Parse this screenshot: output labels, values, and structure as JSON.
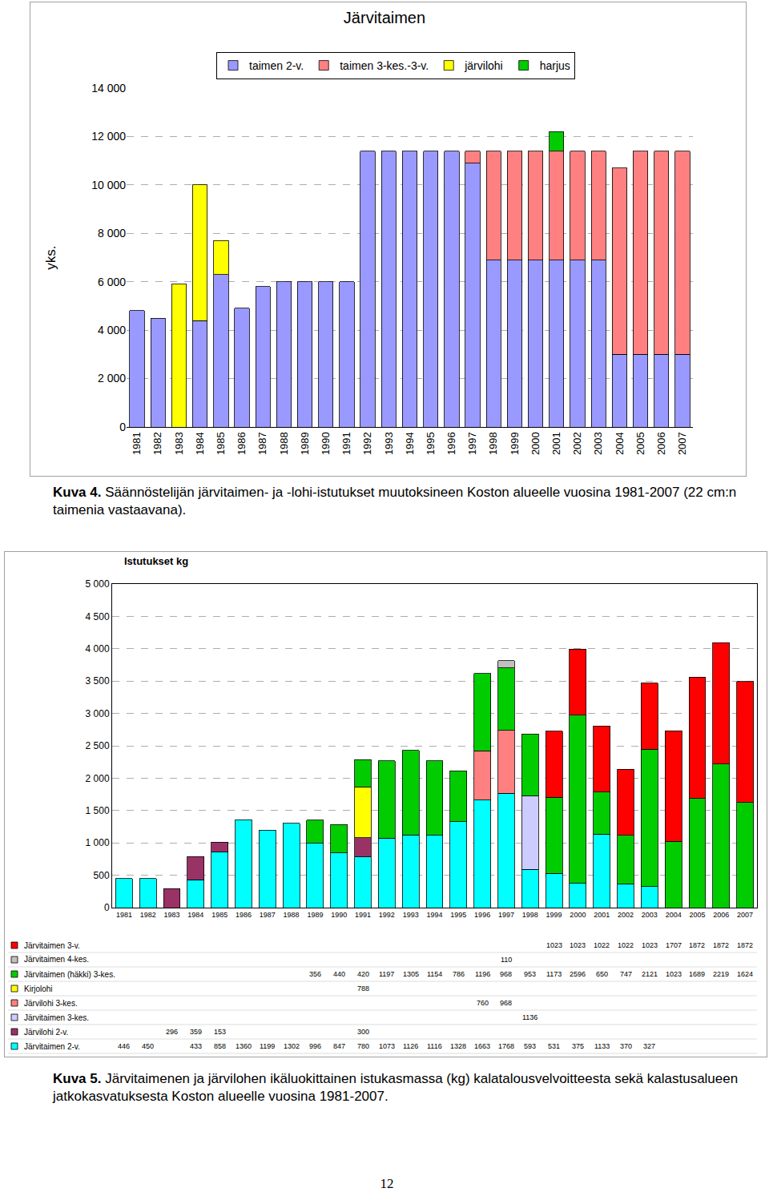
{
  "chart_data": [
    {
      "type": "bar",
      "title": "Järvitaimen",
      "y_label": "yks.",
      "stacked": true,
      "grid": true,
      "legend": "top",
      "categories": [
        "1981",
        "1982",
        "1983",
        "1984",
        "1985",
        "1986",
        "1987",
        "1988",
        "1989",
        "1990",
        "1991",
        "1992",
        "1993",
        "1994",
        "1995",
        "1996",
        "1997",
        "1998",
        "1999",
        "2000",
        "2001",
        "2002",
        "2003",
        "2004",
        "2005",
        "2006",
        "2007"
      ],
      "ylim": [
        0,
        14000
      ],
      "yticks": [
        0,
        {
          "value": 2000,
          "label": "2 000"
        },
        {
          "value": 4000,
          "label": "4 000"
        },
        {
          "value": 6000,
          "label": "6 000"
        },
        {
          "value": 8000,
          "label": "8 000"
        },
        {
          "value": 10000,
          "label": "10 000"
        },
        {
          "value": 12000,
          "label": "12 000"
        },
        {
          "value": 14000,
          "label": "14 000"
        }
      ],
      "series": [
        {
          "name": "taimen 2-v.",
          "color": "#9999FF",
          "values": [
            4800,
            4500,
            null,
            4400,
            6300,
            4900,
            5800,
            6000,
            6000,
            6000,
            6000,
            11400,
            11400,
            11400,
            11400,
            11400,
            10900,
            6900,
            6900,
            6900,
            6900,
            6900,
            6900,
            3000,
            3000,
            3000,
            3000
          ]
        },
        {
          "name": "taimen 3-kes.-3-v.",
          "color": "#FF8080",
          "values": [
            null,
            null,
            null,
            null,
            null,
            null,
            null,
            null,
            null,
            null,
            null,
            null,
            null,
            null,
            null,
            null,
            500,
            4500,
            4500,
            4500,
            4500,
            4500,
            4500,
            7700,
            8400,
            8400,
            8400
          ]
        },
        {
          "name": "järvilohi",
          "color": "#FFFF00",
          "values": [
            null,
            null,
            5900,
            5600,
            1400,
            null,
            null,
            null,
            null,
            null,
            null,
            null,
            null,
            null,
            null,
            null,
            null,
            null,
            null,
            null,
            null,
            null,
            null,
            null,
            null,
            null,
            null
          ]
        },
        {
          "name": "harjus",
          "color": "#00CC00",
          "values": [
            null,
            null,
            null,
            null,
            null,
            null,
            null,
            null,
            null,
            null,
            null,
            null,
            null,
            null,
            null,
            null,
            null,
            null,
            null,
            null,
            800,
            null,
            null,
            null,
            null,
            null,
            null
          ]
        }
      ]
    },
    {
      "type": "bar",
      "title": "Istutukset kg",
      "stacked": true,
      "grid": true,
      "data_labels": true,
      "categories": [
        "1981",
        "1982",
        "1983",
        "1984",
        "1985",
        "1986",
        "1987",
        "1988",
        "1989",
        "1990",
        "1991",
        "1992",
        "1993",
        "1994",
        "1995",
        "1996",
        "1997",
        "1998",
        "1999",
        "2000",
        "2001",
        "2002",
        "2003",
        "2004",
        "2005",
        "2006",
        "2007"
      ],
      "ylim": [
        0,
        5000
      ],
      "yticks": [
        0,
        500,
        {
          "value": 1000,
          "label": "1 000"
        },
        {
          "value": 1500,
          "label": "1 500"
        },
        {
          "value": 2000,
          "label": "2 000"
        },
        {
          "value": 2500,
          "label": "2 500"
        },
        {
          "value": 3000,
          "label": "3 000"
        },
        {
          "value": 3500,
          "label": "3 500"
        },
        {
          "value": 4000,
          "label": "4 000"
        },
        {
          "value": 4500,
          "label": "4 500"
        },
        {
          "value": 5000,
          "label": "5 000"
        }
      ],
      "series": [
        {
          "name": "Järvitaimen 2-v.",
          "color": "#00FFFF",
          "values": [
            446,
            450,
            null,
            433,
            858,
            1360,
            1199,
            1302,
            996,
            847,
            780,
            1073,
            1126,
            1116,
            1328,
            1663,
            1768,
            593,
            531,
            375,
            1133,
            370,
            327,
            null,
            null,
            null,
            null
          ]
        },
        {
          "name": "Järvilohi 2-v.",
          "color": "#993366",
          "values": [
            null,
            null,
            296,
            359,
            153,
            null,
            null,
            null,
            null,
            null,
            300,
            null,
            null,
            null,
            null,
            null,
            null,
            null,
            null,
            null,
            null,
            null,
            null,
            null,
            null,
            null,
            null
          ]
        },
        {
          "name": "Järvitaimen 3-kes.",
          "color": "#CCCCFF",
          "values": [
            null,
            null,
            null,
            null,
            null,
            null,
            null,
            null,
            null,
            null,
            null,
            null,
            null,
            null,
            null,
            null,
            null,
            1136,
            null,
            null,
            null,
            null,
            null,
            null,
            null,
            null,
            null
          ]
        },
        {
          "name": "Järvilohi 3-kes.",
          "color": "#FF8080",
          "values": [
            null,
            null,
            null,
            null,
            null,
            null,
            null,
            null,
            null,
            null,
            null,
            null,
            null,
            null,
            null,
            760,
            968,
            null,
            null,
            null,
            null,
            null,
            null,
            null,
            null,
            null,
            null
          ]
        },
        {
          "name": "Kirjolohi",
          "color": "#FFFF00",
          "values": [
            null,
            null,
            null,
            null,
            null,
            null,
            null,
            null,
            null,
            null,
            788,
            null,
            null,
            null,
            null,
            null,
            null,
            null,
            null,
            null,
            null,
            null,
            null,
            null,
            null,
            null,
            null
          ]
        },
        {
          "name": "Järvitaimen (häkki) 3-kes.",
          "color": "#00CC00",
          "values": [
            null,
            null,
            null,
            null,
            null,
            null,
            null,
            null,
            356,
            440,
            420,
            1197,
            1305,
            1154,
            786,
            1196,
            968,
            953,
            1173,
            2596,
            650,
            747,
            2121,
            1023,
            1689,
            2219,
            1624
          ]
        },
        {
          "name": "Järvitaimen 4-kes.",
          "color": "#C0C0C0",
          "values": [
            null,
            null,
            null,
            null,
            null,
            null,
            null,
            null,
            null,
            null,
            null,
            null,
            null,
            null,
            null,
            null,
            110,
            null,
            null,
            null,
            null,
            null,
            null,
            null,
            null,
            null,
            null
          ]
        },
        {
          "name": "Järvitaimen 3-v.",
          "color": "#FF0000",
          "values": [
            null,
            null,
            null,
            null,
            null,
            null,
            null,
            null,
            null,
            null,
            null,
            null,
            null,
            null,
            null,
            null,
            null,
            null,
            1023,
            1023,
            1022,
            1022,
            1023,
            1707,
            1872,
            1872,
            1872
          ]
        }
      ]
    }
  ],
  "captions": [
    {
      "label": "Kuva 4.",
      "text": "Säännöstelijän järvitaimen- ja -lohi-istutukset muutoksineen Koston alueelle vuosina 1981-2007 (22 cm:n taimenia vastaavana)."
    },
    {
      "label": "Kuva 5.",
      "text": "Järvitaimenen ja järvilohen ikäluokittainen istukasmassa (kg) kalatalousvelvoitteesta sekä kalastusalueen jatkokasvatuksesta Koston alueelle vuosina 1981-2007."
    }
  ],
  "page_number": 12
}
